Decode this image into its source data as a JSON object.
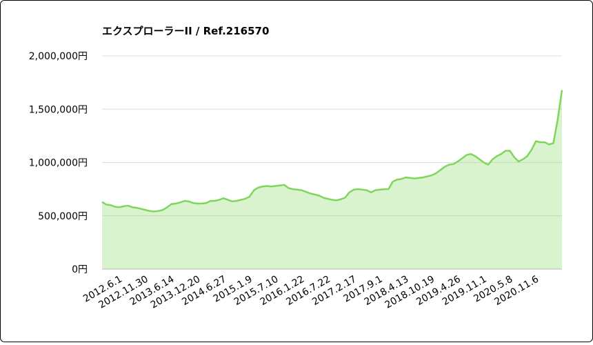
{
  "chart_data": {
    "type": "area",
    "title": "エクスプローラーII / Ref.216570",
    "categories": [
      "2012.6.1",
      null,
      null,
      null,
      null,
      null,
      "2012.11.30",
      null,
      null,
      null,
      null,
      null,
      "2013.6.14",
      null,
      null,
      null,
      null,
      null,
      "2013.12.20",
      null,
      null,
      null,
      null,
      null,
      "2014.6.27",
      null,
      null,
      null,
      null,
      null,
      "2015.1.9",
      null,
      null,
      null,
      null,
      null,
      "2015.7.10",
      null,
      null,
      null,
      null,
      null,
      "2016.1.22",
      null,
      null,
      null,
      null,
      null,
      "2016.7.22",
      null,
      null,
      null,
      null,
      null,
      "2017.2.17",
      null,
      null,
      null,
      null,
      null,
      "2017.9.1",
      null,
      null,
      null,
      null,
      null,
      "2018.4.13",
      null,
      null,
      null,
      null,
      null,
      "2018.10.19",
      null,
      null,
      null,
      null,
      null,
      "2019.4.26",
      null,
      null,
      null,
      null,
      null,
      "2019.11.1",
      null,
      null,
      null,
      null,
      null,
      "2020.5.8",
      null,
      null,
      null,
      null,
      null,
      "2020.11.6",
      null,
      null,
      null,
      null,
      null,
      null,
      null,
      null,
      null,
      null
    ],
    "values": [
      630000,
      605000,
      600000,
      585000,
      580000,
      590000,
      595000,
      580000,
      575000,
      565000,
      555000,
      545000,
      540000,
      545000,
      555000,
      580000,
      610000,
      615000,
      625000,
      640000,
      635000,
      620000,
      615000,
      615000,
      620000,
      640000,
      640000,
      650000,
      665000,
      650000,
      635000,
      640000,
      650000,
      660000,
      680000,
      740000,
      765000,
      775000,
      780000,
      775000,
      780000,
      785000,
      790000,
      760000,
      750000,
      745000,
      740000,
      725000,
      710000,
      700000,
      690000,
      670000,
      660000,
      650000,
      645000,
      655000,
      670000,
      720000,
      745000,
      750000,
      745000,
      740000,
      720000,
      740000,
      745000,
      750000,
      750000,
      820000,
      840000,
      845000,
      860000,
      855000,
      850000,
      855000,
      860000,
      870000,
      880000,
      900000,
      930000,
      960000,
      980000,
      985000,
      1010000,
      1040000,
      1070000,
      1080000,
      1060000,
      1030000,
      1000000,
      980000,
      1030000,
      1060000,
      1080000,
      1110000,
      1110000,
      1050000,
      1010000,
      1030000,
      1060000,
      1120000,
      1200000,
      1190000,
      1190000,
      1170000,
      1180000,
      1400000,
      1680000
    ],
    "color": "#7fd65b",
    "ylim": [
      0,
      2000000
    ],
    "yticks": [
      {
        "value": 0,
        "label": "0円"
      },
      {
        "value": 500000,
        "label": "500,000円"
      },
      {
        "value": 1000000,
        "label": "1,000,000円"
      },
      {
        "value": 1500000,
        "label": "1,500,000円"
      },
      {
        "value": 2000000,
        "label": "2,000,000円"
      }
    ],
    "grid": true
  }
}
